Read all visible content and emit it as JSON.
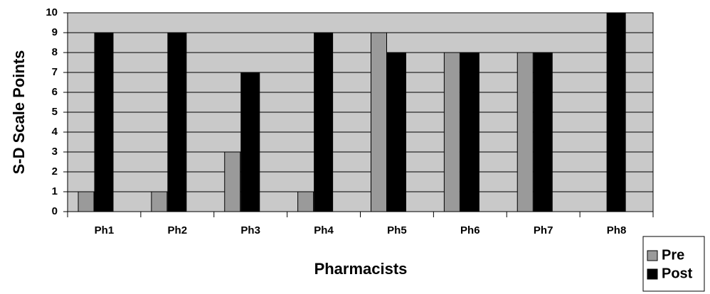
{
  "chart_data": {
    "type": "bar",
    "categories": [
      "Ph1",
      "Ph2",
      "Ph3",
      "Ph4",
      "Ph5",
      "Ph6",
      "Ph7",
      "Ph8"
    ],
    "series": [
      {
        "name": "Pre",
        "color": "#9a9a9a",
        "values": [
          1,
          1,
          3,
          1,
          9,
          8,
          8,
          0
        ]
      },
      {
        "name": "Post",
        "color": "#000000",
        "values": [
          9,
          9,
          7,
          9,
          8,
          8,
          8,
          10
        ]
      }
    ],
    "xlabel": "Pharmacists",
    "ylabel": "S-D Scale Points",
    "ylim": [
      0,
      10
    ],
    "yticks": [
      0,
      1,
      2,
      3,
      4,
      5,
      6,
      7,
      8,
      9,
      10
    ],
    "grid": true,
    "legend": "lower right",
    "background": "#c9c9c9"
  }
}
